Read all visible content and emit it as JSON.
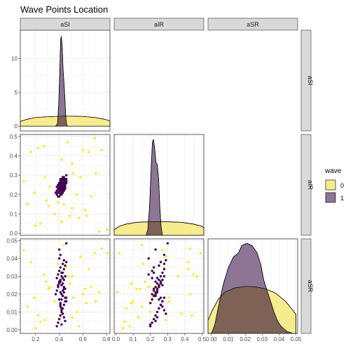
{
  "chart_data": {
    "type": "scatter-matrix",
    "title": "Wave Points Location",
    "variables": [
      "aSI",
      "aIR",
      "aSR"
    ],
    "legend": {
      "title": "wave",
      "placement": "right",
      "levels": [
        "0",
        "1"
      ]
    },
    "colors": {
      "0": "#FDE725",
      "1": "#440154",
      "density_0": "#F6EB8F",
      "density_1": "#8D7596",
      "overlap": "#7E6256",
      "strip": "#D9D9D9",
      "grid": "#EBEBEB"
    },
    "axes": {
      "aSI": {
        "range": [
          0.07,
          0.83
        ],
        "ticks": [
          0.2,
          0.4,
          0.6,
          0.8
        ],
        "tick_labels": [
          "0.2",
          "0.4",
          "0.6",
          "0.8"
        ]
      },
      "aIR": {
        "range": [
          -0.01,
          0.51
        ],
        "ticks": [
          0.0,
          0.1,
          0.2,
          0.3,
          0.4,
          0.5
        ],
        "tick_labels": [
          "0.0",
          "0.1",
          "0.2",
          "0.3",
          "0.4",
          "0.5"
        ]
      },
      "aSR": {
        "range": [
          -0.002,
          0.051
        ],
        "ticks": [
          0.0,
          0.01,
          0.02,
          0.03,
          0.04,
          0.05
        ],
        "tick_labels": [
          "0.00",
          "0.01",
          "0.02",
          "0.03",
          "0.04",
          "0.05"
        ]
      },
      "density_aSI": {
        "range": [
          -0.7,
          14.2
        ],
        "ticks": [
          0,
          5,
          10
        ],
        "tick_labels": [
          "0",
          "5",
          "10"
        ]
      }
    },
    "density": {
      "aSI": {
        "0": [
          [
            0.07,
            0.7
          ],
          [
            0.12,
            1.0
          ],
          [
            0.2,
            1.3
          ],
          [
            0.3,
            1.4
          ],
          [
            0.45,
            1.5
          ],
          [
            0.6,
            1.45
          ],
          [
            0.7,
            1.3
          ],
          [
            0.78,
            1.05
          ],
          [
            0.83,
            0.8
          ]
        ],
        "1": [
          [
            0.37,
            0
          ],
          [
            0.385,
            0.4
          ],
          [
            0.395,
            3.0
          ],
          [
            0.405,
            8.0
          ],
          [
            0.412,
            12.8
          ],
          [
            0.418,
            13.3
          ],
          [
            0.425,
            11.8
          ],
          [
            0.432,
            8.5
          ],
          [
            0.44,
            6.5
          ],
          [
            0.448,
            4.0
          ],
          [
            0.455,
            1.5
          ],
          [
            0.462,
            0.3
          ],
          [
            0.47,
            0
          ]
        ]
      },
      "aIR": {
        "0": [
          [
            -0.01,
            1.0
          ],
          [
            0.02,
            1.6
          ],
          [
            0.06,
            2.0
          ],
          [
            0.12,
            2.3
          ],
          [
            0.2,
            2.4
          ],
          [
            0.3,
            2.4
          ],
          [
            0.38,
            2.3
          ],
          [
            0.45,
            2.0
          ],
          [
            0.5,
            1.6
          ],
          [
            0.51,
            1.3
          ]
        ],
        "1": [
          [
            0.175,
            0
          ],
          [
            0.185,
            1.0
          ],
          [
            0.195,
            5.0
          ],
          [
            0.205,
            12.0
          ],
          [
            0.212,
            16.5
          ],
          [
            0.218,
            17.0
          ],
          [
            0.225,
            15.5
          ],
          [
            0.232,
            13.0
          ],
          [
            0.24,
            12.5
          ],
          [
            0.248,
            10.0
          ],
          [
            0.255,
            5.0
          ],
          [
            0.262,
            1.5
          ],
          [
            0.27,
            0
          ]
        ]
      },
      "aSR": {
        "0": [
          [
            -0.002,
            6.0
          ],
          [
            0.0,
            10.0
          ],
          [
            0.004,
            16.0
          ],
          [
            0.008,
            19.5
          ],
          [
            0.014,
            21.5
          ],
          [
            0.02,
            22.2
          ],
          [
            0.026,
            22.0
          ],
          [
            0.032,
            21.0
          ],
          [
            0.038,
            19.0
          ],
          [
            0.044,
            15.0
          ],
          [
            0.048,
            11.0
          ],
          [
            0.05,
            9.0
          ]
        ],
        "1": [
          [
            0.0,
            0
          ],
          [
            0.002,
            4.0
          ],
          [
            0.004,
            12.0
          ],
          [
            0.007,
            23.0
          ],
          [
            0.01,
            31.0
          ],
          [
            0.013,
            36.0
          ],
          [
            0.016,
            38.0
          ],
          [
            0.018,
            41.5
          ],
          [
            0.021,
            42.5
          ],
          [
            0.024,
            41.5
          ],
          [
            0.027,
            38.0
          ],
          [
            0.029,
            33.0
          ],
          [
            0.031,
            25.0
          ],
          [
            0.033,
            20.0
          ],
          [
            0.035,
            15.0
          ],
          [
            0.037,
            10.0
          ],
          [
            0.039,
            6.0
          ],
          [
            0.041,
            3.5
          ],
          [
            0.043,
            2.0
          ],
          [
            0.045,
            0.8
          ],
          [
            0.047,
            0.3
          ],
          [
            0.048,
            0
          ]
        ]
      }
    },
    "points": {
      "0": [
        [
          0.7,
          0.49,
          0.043
        ],
        [
          0.1,
          0.27,
          0.0445
        ],
        [
          0.16,
          0.42,
          0.038
        ],
        [
          0.13,
          0.15,
          0.013
        ],
        [
          0.27,
          0.45,
          0.031
        ],
        [
          0.29,
          0.17,
          0.027
        ],
        [
          0.58,
          0.29,
          0.041
        ],
        [
          0.62,
          0.12,
          0.023
        ],
        [
          0.67,
          0.19,
          0.024
        ],
        [
          0.74,
          0.01,
          0.021
        ],
        [
          0.76,
          0.43,
          0.0455
        ],
        [
          0.47,
          0.47,
          0.03
        ],
        [
          0.6,
          0.43,
          0.02
        ],
        [
          0.42,
          0.06,
          0.012
        ],
        [
          0.24,
          0.05,
          0.0045
        ],
        [
          0.36,
          0.1,
          0.016
        ],
        [
          0.51,
          0.13,
          0.007
        ],
        [
          0.63,
          0.09,
          0.015
        ],
        [
          0.81,
          0.02,
          0.043
        ],
        [
          0.19,
          0.21,
          0.018
        ],
        [
          0.32,
          0.24,
          0.024
        ],
        [
          0.52,
          0.31,
          0.018
        ],
        [
          0.55,
          0.2,
          0.01
        ],
        [
          0.2,
          0.04,
          0.001
        ],
        [
          0.44,
          0.15,
          0.0475
        ],
        [
          0.22,
          0.44,
          0.008
        ],
        [
          0.39,
          0.16,
          0.037
        ],
        [
          0.28,
          0.29,
          0.0055
        ],
        [
          0.65,
          0.42,
          0.034
        ],
        [
          0.51,
          0.36,
          0.03
        ],
        [
          0.31,
          0.14,
          0.023
        ],
        [
          0.46,
          0.28,
          0.035
        ],
        [
          0.49,
          0.09,
          0.026
        ],
        [
          0.57,
          0.08,
          0.002
        ],
        [
          0.71,
          0.31,
          0.016
        ],
        [
          0.42,
          0.38,
          0.009
        ]
      ],
      "1": [
        [
          0.38,
          0.2,
          0.002
        ],
        [
          0.39,
          0.21,
          0.004
        ],
        [
          0.4,
          0.22,
          0.006
        ],
        [
          0.41,
          0.23,
          0.008
        ],
        [
          0.42,
          0.24,
          0.01
        ],
        [
          0.43,
          0.25,
          0.012
        ],
        [
          0.44,
          0.26,
          0.014
        ],
        [
          0.45,
          0.27,
          0.016
        ],
        [
          0.46,
          0.28,
          0.018
        ],
        [
          0.37,
          0.21,
          0.02
        ],
        [
          0.38,
          0.22,
          0.022
        ],
        [
          0.39,
          0.23,
          0.024
        ],
        [
          0.4,
          0.24,
          0.026
        ],
        [
          0.41,
          0.25,
          0.028
        ],
        [
          0.42,
          0.26,
          0.03
        ],
        [
          0.43,
          0.27,
          0.032
        ],
        [
          0.44,
          0.28,
          0.034
        ],
        [
          0.45,
          0.25,
          0.036
        ],
        [
          0.46,
          0.26,
          0.038
        ],
        [
          0.4,
          0.19,
          0.04
        ],
        [
          0.41,
          0.2,
          0.015
        ],
        [
          0.42,
          0.21,
          0.017
        ],
        [
          0.43,
          0.22,
          0.019
        ],
        [
          0.44,
          0.23,
          0.021
        ],
        [
          0.45,
          0.24,
          0.023
        ],
        [
          0.39,
          0.25,
          0.025
        ],
        [
          0.4,
          0.26,
          0.027
        ],
        [
          0.41,
          0.27,
          0.013
        ],
        [
          0.42,
          0.28,
          0.011
        ],
        [
          0.43,
          0.29,
          0.009
        ],
        [
          0.44,
          0.24,
          0.007
        ],
        [
          0.45,
          0.23,
          0.005
        ],
        [
          0.38,
          0.24,
          0.029
        ],
        [
          0.39,
          0.19,
          0.031
        ],
        [
          0.4,
          0.21,
          0.033
        ],
        [
          0.41,
          0.22,
          0.035
        ],
        [
          0.42,
          0.23,
          0.02
        ],
        [
          0.43,
          0.24,
          0.022
        ],
        [
          0.44,
          0.25,
          0.024
        ],
        [
          0.45,
          0.26,
          0.018
        ],
        [
          0.46,
          0.27,
          0.016
        ],
        [
          0.41,
          0.26,
          0.014
        ],
        [
          0.42,
          0.25,
          0.012
        ],
        [
          0.43,
          0.26,
          0.026
        ],
        [
          0.44,
          0.27,
          0.028
        ],
        [
          0.45,
          0.28,
          0.03
        ],
        [
          0.42,
          0.22,
          0.032
        ],
        [
          0.41,
          0.24,
          0.021
        ],
        [
          0.43,
          0.23,
          0.019
        ],
        [
          0.4,
          0.25,
          0.017
        ],
        [
          0.44,
          0.22,
          0.023
        ],
        [
          0.42,
          0.27,
          0.025
        ],
        [
          0.41,
          0.23,
          0.027
        ],
        [
          0.43,
          0.21,
          0.029
        ],
        [
          0.42,
          0.2,
          0.003
        ],
        [
          0.43,
          0.28,
          0.037
        ],
        [
          0.44,
          0.29,
          0.039
        ],
        [
          0.41,
          0.28,
          0.042
        ],
        [
          0.46,
          0.3,
          0.0485
        ],
        [
          0.4,
          0.23,
          0.045
        ]
      ]
    }
  }
}
